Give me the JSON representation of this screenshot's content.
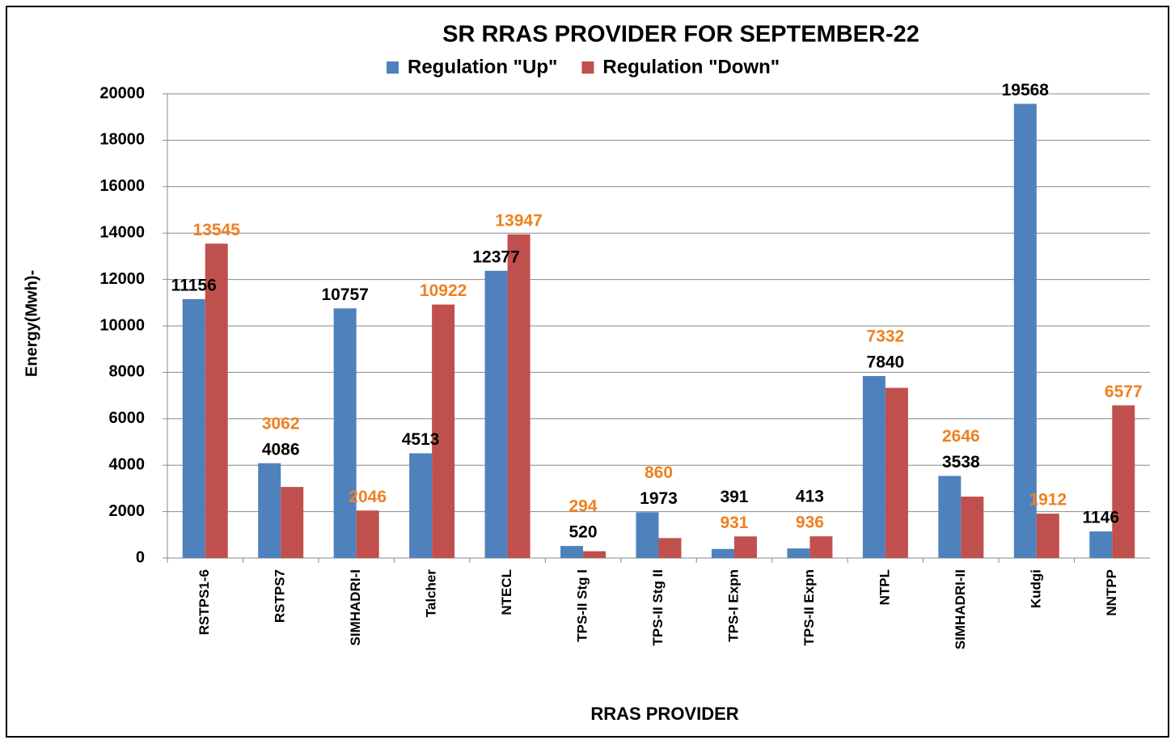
{
  "chart_data": {
    "type": "bar",
    "title": "SR RRAS PROVIDER FOR SEPTEMBER-22",
    "x_label": "RRAS PROVIDER",
    "y_label": "Energy(Mwh)-",
    "categories": [
      "RSTPS1-6",
      "RSTPS7",
      "SIMHADRI-I",
      "Talcher",
      "NTECL",
      "TPS-II Stg I",
      "TPS-II Stg II",
      "TPS-I Expn",
      "TPS-II Expn",
      "NTPL",
      "SIMHADRI-II",
      "Kudgi",
      "NNTPP"
    ],
    "series": [
      {
        "name": "Regulation \"Up\"",
        "color": "#4f81bd",
        "label_color": "#000000",
        "values": [
          11156,
          4086,
          10757,
          4513,
          12377,
          520,
          1973,
          391,
          413,
          7840,
          3538,
          19568,
          1146
        ]
      },
      {
        "name": "Regulation \"Down\"",
        "color": "#c0504d",
        "label_color": "#f08020",
        "values": [
          13545,
          3062,
          2046,
          10922,
          13947,
          294,
          860,
          931,
          936,
          7332,
          2646,
          1912,
          6577
        ]
      }
    ],
    "ylim": [
      0,
      20000
    ],
    "yticks": [
      0,
      2000,
      4000,
      6000,
      8000,
      10000,
      12000,
      14000,
      16000,
      18000,
      20000
    ],
    "grid": true,
    "legend": "top"
  }
}
